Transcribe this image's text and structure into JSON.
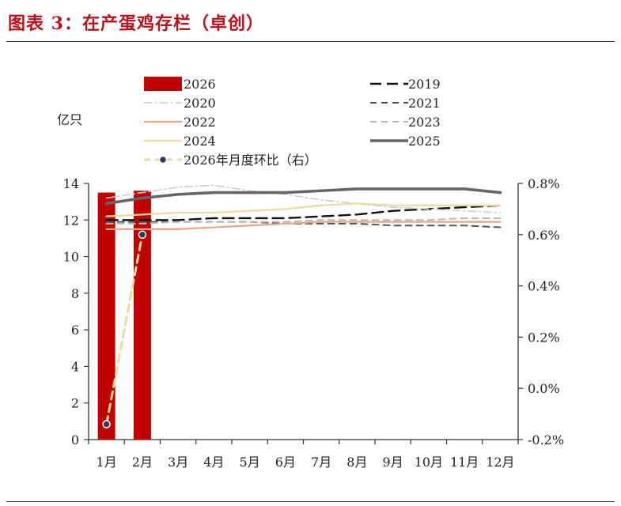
{
  "title": "图表 3：在产蛋鸡存栏（卓创）",
  "chart_data": {
    "type": "bar+line",
    "left_unit": "亿只",
    "x_categories": [
      "1月",
      "2月",
      "3月",
      "4月",
      "5月",
      "6月",
      "7月",
      "8月",
      "9月",
      "10月",
      "11月",
      "12月"
    ],
    "y_left": {
      "min": 0,
      "max": 14,
      "ticks": [
        "0",
        "2",
        "4",
        "6",
        "8",
        "10",
        "12",
        "14"
      ]
    },
    "y_right": {
      "min": -0.2,
      "max": 0.8,
      "ticks": [
        "-0.2%",
        "0.0%",
        "0.2%",
        "0.4%",
        "0.6%",
        "0.8%"
      ]
    },
    "bar_series": {
      "name": "2026",
      "color": "#c00000",
      "values": [
        13.5,
        13.6
      ]
    },
    "line_series": [
      {
        "name": "2019",
        "color": "#111111",
        "dash": "long",
        "width": 2.4,
        "values": [
          12.0,
          12.0,
          12.0,
          12.1,
          12.1,
          12.1,
          12.2,
          12.3,
          12.5,
          12.6,
          12.7,
          12.8
        ]
      },
      {
        "name": "2020",
        "color": "#cccccc",
        "dash": "dashdot",
        "width": 1.6,
        "values": [
          13.2,
          13.5,
          13.8,
          13.9,
          13.6,
          13.4,
          13.1,
          12.9,
          12.7,
          12.6,
          12.5,
          12.4
        ]
      },
      {
        "name": "2021",
        "color": "#555555",
        "dash": "short",
        "width": 2.0,
        "values": [
          11.9,
          11.9,
          11.9,
          11.9,
          11.9,
          11.8,
          11.8,
          11.8,
          11.7,
          11.7,
          11.7,
          11.6
        ]
      },
      {
        "name": "2022",
        "color": "#e8a58a",
        "dash": "solid",
        "width": 2.2,
        "values": [
          11.5,
          11.5,
          11.5,
          11.6,
          11.7,
          11.8,
          11.9,
          11.9,
          11.9,
          11.9,
          11.9,
          11.9
        ]
      },
      {
        "name": "2023",
        "color": "#b8b8b8",
        "dash": "short",
        "width": 2.0,
        "values": [
          11.8,
          11.8,
          11.9,
          11.9,
          11.9,
          11.9,
          12.0,
          12.0,
          12.0,
          12.0,
          12.1,
          12.1
        ]
      },
      {
        "name": "2024",
        "color": "#f0d9a0",
        "dash": "solid",
        "width": 2.2,
        "values": [
          12.2,
          12.3,
          12.4,
          12.4,
          12.5,
          12.6,
          12.8,
          12.9,
          12.8,
          12.8,
          12.8,
          12.8
        ]
      },
      {
        "name": "2025",
        "color": "#666666",
        "dash": "solid",
        "width": 3.6,
        "values": [
          12.9,
          13.2,
          13.4,
          13.5,
          13.5,
          13.5,
          13.6,
          13.7,
          13.7,
          13.7,
          13.7,
          13.5
        ]
      }
    ],
    "mom_series": {
      "name": "2026年月度环比（右）",
      "axis": "right",
      "color": "#f0d9a0",
      "marker_color": "#2f3d5a",
      "values": [
        -0.14,
        0.6
      ]
    },
    "legend": [
      "2026",
      "2019",
      "2020",
      "2021",
      "2022",
      "2023",
      "2024",
      "2025",
      "2026年月度环比（右）"
    ],
    "legend_position": "top-left"
  }
}
